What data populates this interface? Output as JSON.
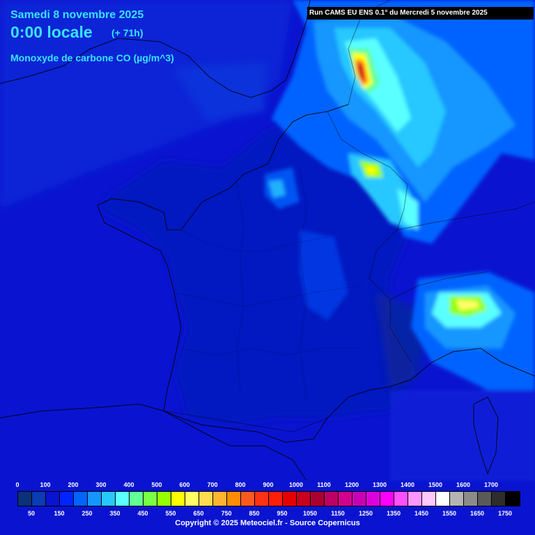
{
  "header": {
    "date": "Samedi 8 novembre 2025",
    "time": "0:00 locale",
    "lead": "(+ 71h)",
    "parameter": "Monoxyde de carbone CO (µg/m^3)"
  },
  "run_info": "Run CAMS EU ENS 0.1° du Mercredi 5 novembre 2025",
  "legend": {
    "top_labels": [
      "0",
      "100",
      "200",
      "300",
      "400",
      "500",
      "600",
      "700",
      "800",
      "900",
      "1000",
      "1100",
      "1200",
      "1300",
      "1400",
      "1500",
      "1600",
      "1700"
    ],
    "bottom_labels": [
      "50",
      "150",
      "250",
      "350",
      "450",
      "550",
      "650",
      "750",
      "850",
      "950",
      "1050",
      "1150",
      "1250",
      "1350",
      "1450",
      "1550",
      "1650",
      "1750"
    ],
    "colors": [
      "#0a3278",
      "#0a3cb4",
      "#0a14d0",
      "#0024ff",
      "#0064ff",
      "#1496ff",
      "#28c8ff",
      "#5affff",
      "#64ff96",
      "#78ff46",
      "#96ff00",
      "#ffff00",
      "#ffff64",
      "#ffdc50",
      "#ffb432",
      "#ff8c00",
      "#ff5a1e",
      "#ff3214",
      "#ff1e0a",
      "#e60000",
      "#c8001e",
      "#aa0032",
      "#be0064",
      "#d2008c",
      "#c800b4",
      "#dc00dc",
      "#ff00ff",
      "#ff50ff",
      "#ff96ff",
      "#ffc8ff",
      "#ffffff",
      "#b4b4b4",
      "#8c8c8c",
      "#5a5a5a",
      "#2d2d2d",
      "#000000"
    ]
  },
  "copyright": "Copyright © 2025 Meteociel.fr - Source Copernicus",
  "colors": {
    "background": "#0a14d0",
    "header_text": "#38e4ff",
    "coastline": "#000000"
  }
}
